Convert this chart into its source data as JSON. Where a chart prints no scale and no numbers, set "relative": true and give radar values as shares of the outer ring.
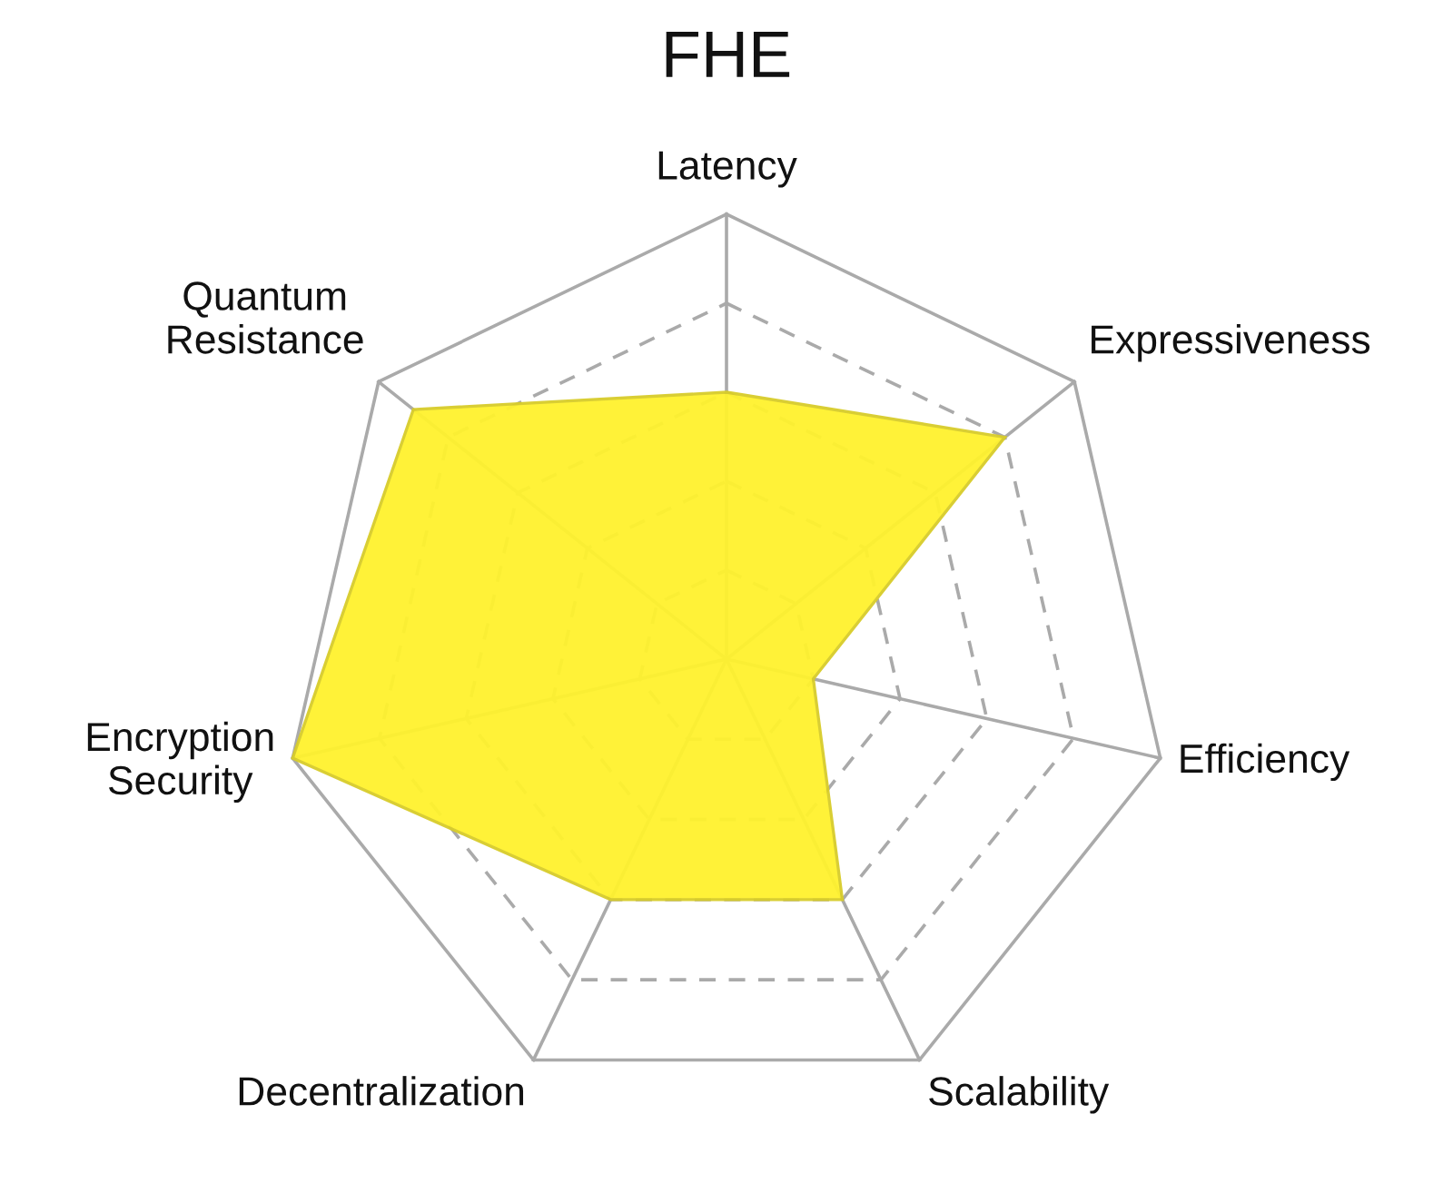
{
  "chart_data": {
    "type": "radar",
    "title": "FHE",
    "relative": true,
    "grid": true,
    "categories": [
      "Latency",
      "Expressiveness",
      "Efficiency",
      "Scalability",
      "Decentralization",
      "Encryption\nSecurity",
      "Quantum\nResistance"
    ],
    "series": [
      {
        "color": "#fff22e",
        "values": [
          0.6,
          0.8,
          0.2,
          0.6,
          0.6,
          1.0,
          0.9
        ]
      }
    ]
  }
}
